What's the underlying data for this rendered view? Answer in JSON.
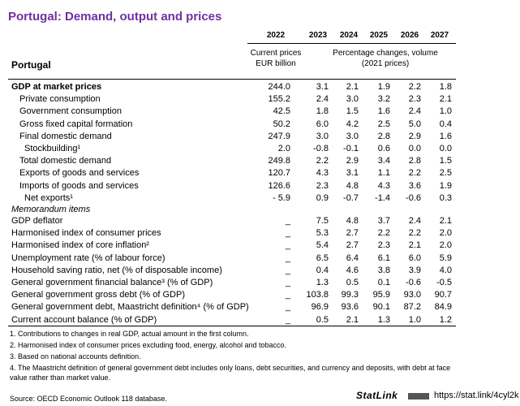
{
  "title": "Portugal: Demand, output and prices",
  "table": {
    "country": "Portugal",
    "years": [
      "2022",
      "2023",
      "2024",
      "2025",
      "2026",
      "2027"
    ],
    "unit_current": "Current prices\nEUR billion",
    "unit_change": "Percentage changes, volume\n(2021 prices)",
    "rows": [
      [
        "GDP at market prices",
        "244.0",
        "3.1",
        "2.1",
        "1.9",
        "2.2",
        "1.8"
      ],
      [
        "Private consumption",
        "155.2",
        "2.4",
        "3.0",
        "3.2",
        "2.3",
        "2.1"
      ],
      [
        "Government consumption",
        "42.5",
        "1.8",
        "1.5",
        "1.6",
        "2.4",
        "1.0"
      ],
      [
        "Gross fixed capital formation",
        "50.2",
        "6.0",
        "4.2",
        "2.5",
        "5.0",
        "0.4"
      ],
      [
        "Final domestic demand",
        "247.9",
        "3.0",
        "3.0",
        "2.8",
        "2.9",
        "1.6"
      ],
      [
        "Stockbuilding¹",
        "2.0",
        "-0.8",
        "-0.1",
        "0.6",
        "0.0",
        "0.0"
      ],
      [
        "Total domestic demand",
        "249.8",
        "2.2",
        "2.9",
        "3.4",
        "2.8",
        "1.5"
      ],
      [
        "Exports of goods and services",
        "120.7",
        "4.3",
        "3.1",
        "1.1",
        "2.2",
        "2.5"
      ],
      [
        "Imports of goods and services",
        "126.6",
        "2.3",
        "4.8",
        "4.3",
        "3.6",
        "1.9"
      ],
      [
        "Net exports¹",
        "- 5.9",
        "0.9",
        "-0.7",
        "-1.4",
        "-0.6",
        "0.3"
      ]
    ],
    "memorandum_title": "Memorandum items",
    "memorandum_rows": [
      [
        "GDP deflator",
        "_",
        "7.5",
        "4.8",
        "3.7",
        "2.4",
        "2.1"
      ],
      [
        "Harmonised index of consumer prices",
        "_",
        "5.3",
        "2.7",
        "2.2",
        "2.2",
        "2.0"
      ],
      [
        "Harmonised index of core inflation²",
        "_",
        "5.4",
        "2.7",
        "2.3",
        "2.1",
        "2.0"
      ],
      [
        "Unemployment rate (% of labour force)",
        "_",
        "6.5",
        "6.4",
        "6.1",
        "6.0",
        "5.9"
      ],
      [
        "Household saving ratio, net (% of disposable income)",
        "_",
        "0.4",
        "4.6",
        "3.8",
        "3.9",
        "4.0"
      ],
      [
        "General government financial balance³ (% of GDP)",
        "_",
        "1.3",
        "0.5",
        "0.1",
        "-0.6",
        "-0.5"
      ],
      [
        "General government gross debt (% of GDP)",
        "_",
        "103.8",
        "99.3",
        "95.9",
        "93.0",
        "90.7"
      ],
      [
        "General government debt, Maastricht definition⁴ (% of GDP)",
        "_",
        "96.9",
        "93.6",
        "90.1",
        "87.2",
        "84.9"
      ],
      [
        "Current account balance (% of GDP)",
        "_",
        "0.5",
        "2.1",
        "1.3",
        "1.0",
        "1.2"
      ]
    ]
  },
  "notes": [
    "1. Contributions to changes in real GDP, actual amount in the first column.",
    "2. Harmonised index of consumer prices excluding food, energy, alcohol and tobacco.",
    "3. Based on national accounts definition.",
    "4. The Maastricht definition of general government debt includes only loans, debt securities, and currency and deposits, with debt at face value rather than market value.",
    "Source: OECD Economic Outlook 118 database."
  ],
  "statlink": {
    "brand": "StatLink",
    "url": "https://stat.link/4cyl2k"
  }
}
